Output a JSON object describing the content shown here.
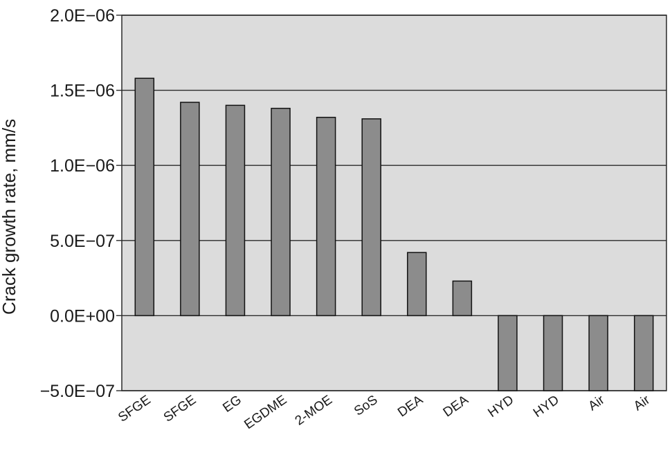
{
  "chart_data": {
    "type": "bar",
    "title": "",
    "xlabel": "",
    "ylabel": "Crack growth rate, mm/s",
    "ylim": [
      -5e-07,
      2e-06
    ],
    "yticks": [
      -5e-07,
      0.0,
      5e-07,
      1e-06,
      1.5e-06,
      2e-06
    ],
    "ytick_labels": [
      "−5.0E−07",
      "0.0E+00",
      "5.0E−07",
      "1.0E−06",
      "1.5E−06",
      "2.0E−06"
    ],
    "grid": true,
    "categories": [
      "SFGE",
      "SFGE",
      "EG",
      "EGDME",
      "2-MOE",
      "SoS",
      "DEA",
      "DEA",
      "HYD",
      "HYD",
      "Air",
      "Air"
    ],
    "values": [
      1.58e-06,
      1.42e-06,
      1.4e-06,
      1.38e-06,
      1.32e-06,
      1.31e-06,
      4.2e-07,
      2.3e-07,
      -5e-07,
      -5e-07,
      -5e-07,
      -5e-07
    ],
    "colors": {
      "plot_background": "#dcdcdc",
      "bar_fill": "#8c8c8c",
      "bar_stroke": "#111111",
      "grid": "#2a2a2a"
    }
  }
}
